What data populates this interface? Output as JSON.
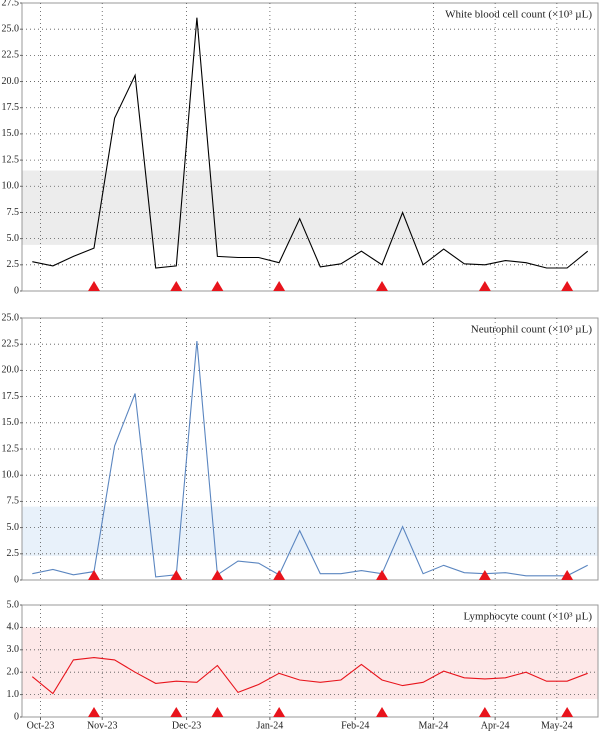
{
  "chart_data": [
    {
      "type": "line",
      "title": "White blood cell count (×10³ µL)",
      "color": "#000000",
      "x": [
        0,
        1,
        2,
        3,
        4,
        5,
        6,
        7,
        8,
        9,
        10,
        11,
        12,
        13,
        14,
        15,
        16,
        17,
        18,
        19,
        20,
        21,
        22,
        23,
        24,
        25,
        26,
        27
      ],
      "values": [
        2.8,
        2.4,
        3.3,
        4.1,
        16.5,
        20.6,
        2.2,
        2.4,
        26.1,
        3.3,
        3.2,
        3.2,
        2.7,
        6.9,
        2.3,
        2.6,
        3.8,
        2.5,
        7.5,
        2.5,
        4.0,
        2.6,
        2.5,
        2.9,
        2.7,
        2.2,
        2.2,
        3.8
      ],
      "normal_range": [
        4.4,
        11.5
      ],
      "band_color": "#ececec",
      "event_x": [
        3,
        7,
        9,
        12,
        17,
        22,
        26
      ],
      "event_color": "#e8141c",
      "xlim": [
        -0.5,
        27.5
      ],
      "ylim": [
        0,
        27.5
      ],
      "yticks": [
        0,
        2.5,
        {
          "value": 5,
          "label": "5.0"
        },
        7.5,
        {
          "value": 10,
          "label": "10.0"
        },
        12.5,
        {
          "value": 15,
          "label": "15.0"
        },
        17.5,
        {
          "value": 20,
          "label": "20.0"
        },
        22.5,
        {
          "value": 25,
          "label": "25.0"
        },
        27.5
      ],
      "grid": true
    },
    {
      "type": "line",
      "title": "Neutrophil count (×10³ µL)",
      "color": "#5b86c0",
      "x": [
        0,
        1,
        2,
        3,
        4,
        5,
        6,
        7,
        8,
        9,
        10,
        11,
        12,
        13,
        14,
        15,
        16,
        17,
        18,
        19,
        20,
        21,
        22,
        23,
        24,
        25,
        26,
        27
      ],
      "values": [
        0.6,
        1.0,
        0.5,
        0.8,
        12.8,
        17.8,
        0.3,
        0.5,
        22.8,
        0.5,
        1.8,
        1.6,
        0.5,
        4.7,
        0.6,
        0.6,
        0.9,
        0.6,
        5.1,
        0.6,
        1.4,
        0.7,
        0.6,
        0.7,
        0.4,
        0.4,
        0.4,
        1.4
      ],
      "normal_range": [
        2.3,
        7.0
      ],
      "band_color": "#e8f1fa",
      "event_x": [
        3,
        7,
        9,
        12,
        17,
        22,
        26
      ],
      "event_color": "#e8141c",
      "xlim": [
        -0.5,
        27.5
      ],
      "ylim": [
        0,
        25
      ],
      "yticks": [
        0,
        2.5,
        {
          "value": 5,
          "label": "5.0"
        },
        7.5,
        {
          "value": 10,
          "label": "10.0"
        },
        12.5,
        {
          "value": 15,
          "label": "15.0"
        },
        17.5,
        {
          "value": 20,
          "label": "20.0"
        },
        22.5,
        {
          "value": 25,
          "label": "25.0"
        }
      ],
      "grid": true
    },
    {
      "type": "line",
      "title": "Lymphocyte count (×10³ µL)",
      "color": "#e8141c",
      "x": [
        0,
        1,
        2,
        3,
        4,
        5,
        6,
        7,
        8,
        9,
        10,
        11,
        12,
        13,
        14,
        15,
        16,
        17,
        18,
        19,
        20,
        21,
        22,
        23,
        24,
        25,
        26,
        27
      ],
      "values": [
        1.8,
        1.05,
        2.55,
        2.65,
        2.55,
        2.0,
        1.5,
        1.6,
        1.55,
        2.3,
        1.1,
        1.45,
        1.95,
        1.65,
        1.55,
        1.65,
        2.35,
        1.65,
        1.4,
        1.55,
        2.05,
        1.75,
        1.7,
        1.75,
        2.0,
        1.6,
        1.6,
        1.95
      ],
      "normal_range": [
        0.8,
        4.0
      ],
      "band_color": "#fde8e8",
      "event_x": [
        3,
        7,
        9,
        12,
        17,
        22,
        26
      ],
      "event_color": "#e8141c",
      "xlim": [
        -0.5,
        27.5
      ],
      "ylim": [
        0,
        5
      ],
      "yticks": [
        0,
        {
          "value": 1,
          "label": "1.0"
        },
        {
          "value": 2,
          "label": "2.0"
        },
        {
          "value": 3,
          "label": "3.0"
        },
        {
          "value": 4,
          "label": "4.0"
        },
        {
          "value": 5,
          "label": "5.0"
        }
      ],
      "xticks": [
        {
          "value": 0.4,
          "label": "Oct-23"
        },
        {
          "value": 3.4,
          "label": "Nov-23"
        },
        {
          "value": 7.5,
          "label": "Dec-23"
        },
        {
          "value": 11.55,
          "label": "Jan-24"
        },
        {
          "value": 15.7,
          "label": "Feb-24"
        },
        {
          "value": 19.5,
          "label": "Mar-24"
        },
        {
          "value": 22.5,
          "label": "Apr-24"
        },
        {
          "value": 25.5,
          "label": "May-24"
        }
      ],
      "grid": true
    }
  ]
}
